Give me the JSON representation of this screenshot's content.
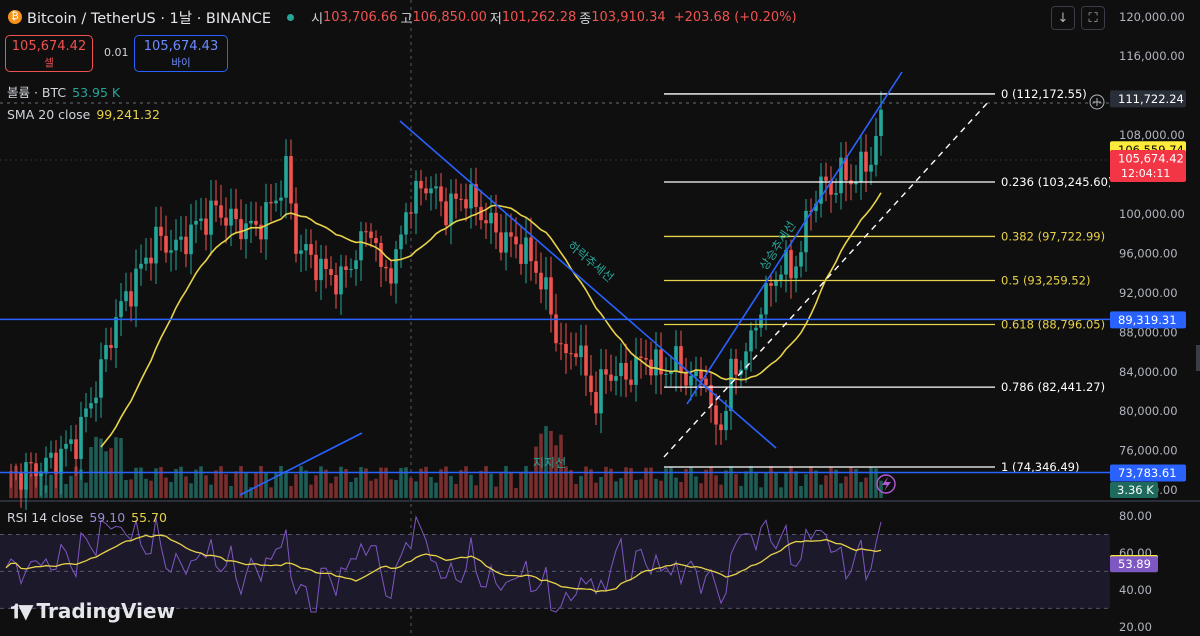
{
  "header": {
    "symbol_title": "Bitcoin / TetherUS · 1날 · BINANCE",
    "open_label": "시",
    "open": "103,706.66",
    "high_label": "고",
    "high": "106,850.00",
    "low_label": "저",
    "low": "101,262.28",
    "close_label": "종",
    "close": "103,910.34",
    "change": "+203.68 (+0.20%)"
  },
  "trade": {
    "sell_price": "105,674.42",
    "sell_label": "셀",
    "spread": "0.01",
    "buy_price": "105,674.43",
    "buy_label": "바이"
  },
  "indicators": {
    "volume_label": "볼륨 · BTC",
    "volume_value": "53.95 K",
    "sma_label": "SMA 20 close",
    "sma_value": "99,241.32",
    "rsi_label": "RSI 14 close",
    "rsi_value": "59.10",
    "rsi_ma_value": "55.70"
  },
  "toolbar": {
    "download_icon": "download-arrow-icon",
    "fullscreen_icon": "fullscreen-icon"
  },
  "price_axis": {
    "ticks": [
      "120,000.00",
      "116,000.00",
      "112,000.00",
      "108,000.00",
      "104,000.00",
      "100,000.00",
      "96,000.00",
      "92,000.00",
      "88,000.00",
      "84,000.00",
      "80,000.00",
      "76,000.00",
      "72,000.00"
    ],
    "tick_values": [
      120000,
      116000,
      112000,
      108000,
      104000,
      100000,
      96000,
      92000,
      88000,
      84000,
      80000,
      76000,
      72000
    ],
    "range": [
      71200,
      121700
    ],
    "labels": [
      {
        "text": "111,722.24",
        "value": 111722.24,
        "bg": "#2a2e39",
        "color": "#ffffff"
      },
      {
        "text": "106,559.74",
        "value": 106559.74,
        "bg": "#ffeb3b",
        "color": "#000000"
      },
      {
        "text": "105,674.42",
        "sub": "12:04:11",
        "value": 105674.42,
        "bg": "#f23645",
        "color": "#ffffff"
      },
      {
        "text": "89,319.31",
        "value": 89319.31,
        "bg": "#2962ff",
        "color": "#ffffff"
      },
      {
        "text": "73,783.61",
        "value": 73783.61,
        "bg": "#2962ff",
        "color": "#ffffff"
      }
    ],
    "volume_label": "3.36 K"
  },
  "rsi_axis": {
    "ticks": [
      "80.00",
      "60.00",
      "40.00",
      "20.00"
    ],
    "tick_values": [
      80,
      60,
      40,
      20
    ],
    "range": [
      15,
      86
    ],
    "labels": [
      {
        "text": "54.57",
        "value": 54.57,
        "bg": "#ffeb3b",
        "color": "#000000"
      },
      {
        "text": "53.89",
        "value": 53.89,
        "bg": "#7e57c2",
        "color": "#ffffff"
      }
    ]
  },
  "fibonacci": [
    {
      "label": "0 (112,172.55)",
      "value": 112172.55,
      "color": "#ffffff"
    },
    {
      "label": "0.236 (103,245.60)",
      "value": 103245.6,
      "color": "#ffffff"
    },
    {
      "label": "0.382 (97,722.99)",
      "value": 97722.99,
      "color": "#e8d24a"
    },
    {
      "label": "0.5 (93,259.52)",
      "value": 93259.52,
      "color": "#e8d24a"
    },
    {
      "label": "0.618 (88,796.05)",
      "value": 88796.05,
      "color": "#e8d24a"
    },
    {
      "label": "0.786 (82,441.27)",
      "value": 82441.27,
      "color": "#ffffff"
    },
    {
      "label": "1 (74,346.49)",
      "value": 74346.49,
      "color": "#ffffff"
    }
  ],
  "annotations": {
    "downtrend": "하락추세선",
    "uptrend": "상승추세선",
    "support": "지지선"
  },
  "colors": {
    "up": "#26a69a",
    "down": "#ef5350",
    "sma": "#e8d24a",
    "rsi": "#7e57c2",
    "trend": "#2962ff"
  },
  "brand": "TradingView"
}
